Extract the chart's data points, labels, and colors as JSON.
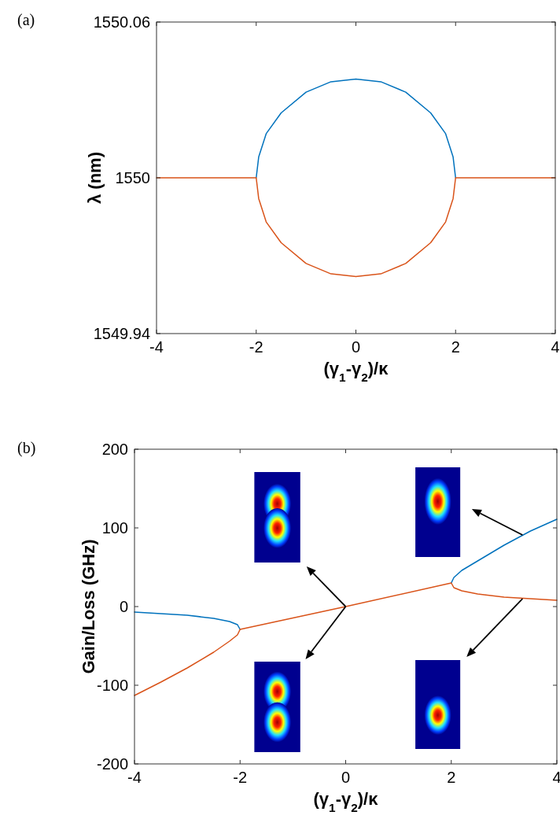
{
  "chart_data": [
    {
      "type": "line",
      "title": "(a)",
      "xlabel": "(γ$_{1}$-γ$_{2}$)/κ",
      "ylabel": "λ (nm)",
      "xlim": [
        -4,
        4
      ],
      "xticks": [
        -4,
        -2,
        0,
        2,
        4
      ],
      "ylim": [
        1549.94,
        1550.06
      ],
      "yticks": [
        1549.94,
        1550,
        1550.06
      ],
      "grid": false,
      "series": [
        {
          "color": "#0072bd",
          "x": [
            -2,
            -1.95,
            -1.8,
            -1.5,
            -1,
            -0.5,
            0,
            0.5,
            1,
            1.5,
            1.8,
            1.95,
            2
          ],
          "values": [
            1550,
            1550.008,
            1550.017,
            1550.025,
            1550.033,
            1550.037,
            1550.038,
            1550.037,
            1550.033,
            1550.025,
            1550.017,
            1550.008,
            1550
          ]
        },
        {
          "color": "#d95319",
          "x": [
            -4,
            -2,
            -1.95,
            -1.8,
            -1.5,
            -1,
            -0.5,
            0,
            0.5,
            1,
            1.5,
            1.8,
            1.95,
            2,
            4
          ],
          "values": [
            1550,
            1550,
            1549.992,
            1549.983,
            1549.975,
            1549.967,
            1549.963,
            1549.962,
            1549.963,
            1549.967,
            1549.975,
            1549.983,
            1549.992,
            1550,
            1550
          ]
        }
      ]
    },
    {
      "type": "line",
      "title": "(b)",
      "xlabel": "(γ$_{1}$-γ$_{2}$)/κ",
      "ylabel": "Gain/Loss (GHz)",
      "xlim": [
        -4,
        4
      ],
      "xticks": [
        -4,
        -2,
        0,
        2,
        4
      ],
      "ylim": [
        -200,
        200
      ],
      "yticks": [
        -200,
        -100,
        0,
        100,
        200
      ],
      "grid": false,
      "series": [
        {
          "color": "#0072bd",
          "x": [
            -4,
            -3.5,
            -3,
            -2.5,
            -2.2,
            -2.05,
            -2,
            0,
            2,
            2.05,
            2.2,
            2.5,
            3,
            3.5,
            4
          ],
          "values": [
            -7,
            -9,
            -11,
            -15,
            -19,
            -23,
            -29,
            null,
            30,
            37,
            46,
            58,
            78,
            96,
            111
          ]
        },
        {
          "color": "#d95319",
          "x": [
            -4,
            -3.5,
            -3,
            -2.5,
            -2.2,
            -2.05,
            -2,
            0,
            2,
            2.05,
            2.2,
            2.5,
            3,
            3.5,
            4
          ],
          "values": [
            -113,
            -96,
            -78,
            -58,
            -44,
            -36,
            -29,
            0,
            30,
            24,
            20,
            16,
            12,
            10,
            8
          ]
        }
      ]
    }
  ]
}
